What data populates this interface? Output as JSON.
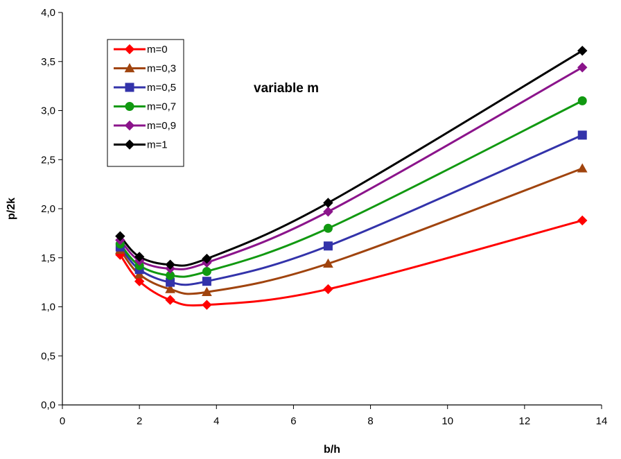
{
  "chart_data": {
    "type": "line",
    "title": "",
    "xlabel": "b/h",
    "ylabel": "p/2k",
    "annotation": "variable m",
    "xlim": [
      0,
      14
    ],
    "ylim": [
      0,
      4
    ],
    "xticks": [
      0,
      2,
      4,
      6,
      8,
      10,
      12,
      14
    ],
    "yticks": [
      0,
      0.5,
      1,
      1.5,
      2,
      2.5,
      3,
      3.5,
      4
    ],
    "xtick_labels": [
      "0",
      "2",
      "4",
      "6",
      "8",
      "10",
      "12",
      "14"
    ],
    "ytick_labels": [
      "0,0",
      "0,5",
      "1,0",
      "1,5",
      "2,0",
      "2,5",
      "3,0",
      "3,5",
      "4,0"
    ],
    "grid": false,
    "legend_position": "top-left",
    "x": [
      1.5,
      2.0,
      2.8,
      3.75,
      6.9,
      13.5
    ],
    "series": [
      {
        "name": "m=0",
        "color": "#ff0000",
        "marker": "diamond",
        "values": [
          1.53,
          1.26,
          1.07,
          1.02,
          1.18,
          1.88
        ]
      },
      {
        "name": "m=0,3",
        "color": "#a0440e",
        "marker": "triangle",
        "values": [
          1.58,
          1.33,
          1.18,
          1.15,
          1.44,
          2.41
        ]
      },
      {
        "name": "m=0,5",
        "color": "#3333aa",
        "marker": "square",
        "values": [
          1.61,
          1.38,
          1.25,
          1.26,
          1.62,
          2.75
        ]
      },
      {
        "name": "m=0,7",
        "color": "#119911",
        "marker": "circle",
        "values": [
          1.64,
          1.42,
          1.32,
          1.36,
          1.8,
          3.1
        ]
      },
      {
        "name": "m=0,9",
        "color": "#8b148b",
        "marker": "diamond",
        "values": [
          1.68,
          1.47,
          1.39,
          1.45,
          1.97,
          3.44
        ]
      },
      {
        "name": "m=1",
        "color": "#000000",
        "marker": "diamond",
        "values": [
          1.72,
          1.51,
          1.43,
          1.49,
          2.06,
          3.61
        ]
      }
    ]
  }
}
